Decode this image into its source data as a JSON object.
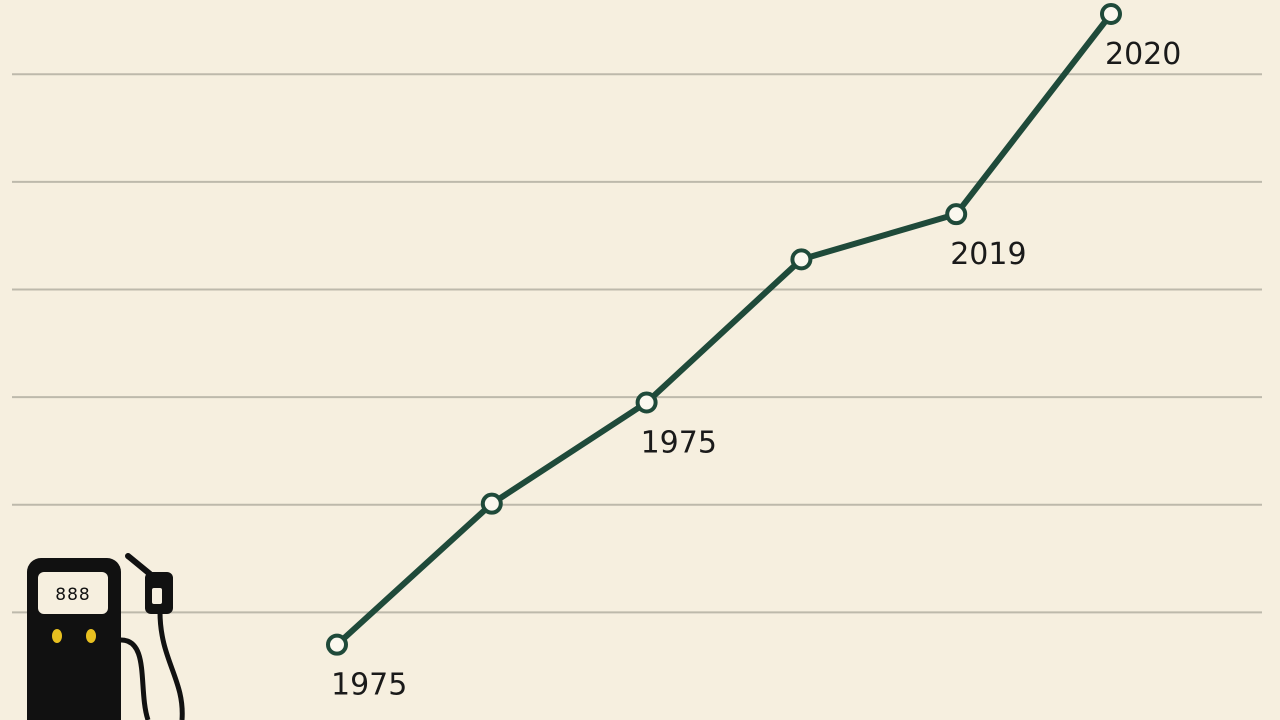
{
  "chart_data": {
    "type": "line",
    "categories": [
      "1975",
      null,
      "1975",
      null,
      "2019",
      "2020"
    ],
    "values": [
      0.7,
      2.01,
      2.95,
      4.28,
      4.7,
      6.56
    ],
    "color": "#1f4a3a",
    "ylim": [
      0,
      6.69
    ],
    "yticks": [
      1,
      2,
      3,
      4,
      5,
      6
    ],
    "grid": true
  },
  "icon": {
    "display": "888"
  }
}
